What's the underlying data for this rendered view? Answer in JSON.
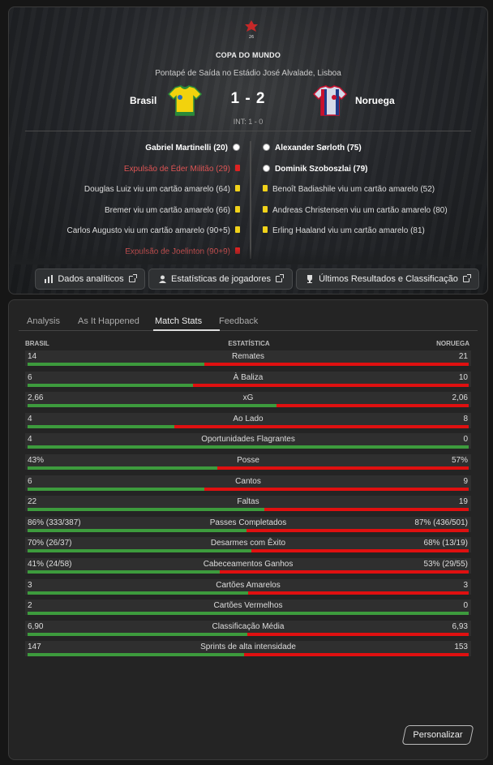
{
  "header": {
    "competition": "COPA DO MUNDO",
    "venue": "Pontapé de Saída no Estádio José Alvalade, Lisboa",
    "home_team": "Brasil",
    "away_team": "Noruega",
    "score": "1 - 2",
    "half_time": "INT: 1 - 0"
  },
  "events": {
    "home": [
      {
        "text": "Gabriel Martinelli (20)",
        "type": "goal"
      },
      {
        "text": "Expulsão de Éder Militão (29)",
        "type": "red"
      },
      {
        "text": "Douglas Luiz viu um cartão amarelo (64)",
        "type": "yellow"
      },
      {
        "text": "Bremer viu um cartão amarelo (66)",
        "type": "yellow"
      },
      {
        "text": "Carlos Augusto viu um cartão amarelo (90+5)",
        "type": "yellow"
      },
      {
        "text": "Expulsão de Joelinton (90+9)",
        "type": "red"
      }
    ],
    "away": [
      {
        "text": "Alexander Sørloth (75)",
        "type": "goal"
      },
      {
        "text": "Dominik Szoboszlai (79)",
        "type": "goal"
      },
      {
        "text": "Benoît Badiashile viu um cartão amarelo (52)",
        "type": "yellow"
      },
      {
        "text": "Andreas Christensen viu um cartão amarelo (80)",
        "type": "yellow"
      },
      {
        "text": "Erling Haaland viu um cartão amarelo (81)",
        "type": "yellow"
      }
    ]
  },
  "buttons": {
    "analytics": "Dados analíticos",
    "player_stats": "Estatísticas de jogadores",
    "results": "Últimos Resultados e Classificação"
  },
  "tabs": [
    "Analysis",
    "As It Happened",
    "Match Stats",
    "Feedback"
  ],
  "active_tab": "Match Stats",
  "stats_header": {
    "home": "BRASIL",
    "mid": "ESTATÍSTICA",
    "away": "NORUEGA"
  },
  "stats": [
    {
      "label": "Remates",
      "home": "14",
      "away": "21",
      "home_share": 0.4
    },
    {
      "label": "À Baliza",
      "home": "6",
      "away": "10",
      "home_share": 0.375
    },
    {
      "label": "xG",
      "home": "2,66",
      "away": "2,06",
      "home_share": 0.564
    },
    {
      "label": "Ao Lado",
      "home": "4",
      "away": "8",
      "home_share": 0.333
    },
    {
      "label": "Oportunidades Flagrantes",
      "home": "4",
      "away": "0",
      "home_share": 1.0
    },
    {
      "label": "Posse",
      "home": "43%",
      "away": "57%",
      "home_share": 0.43
    },
    {
      "label": "Cantos",
      "home": "6",
      "away": "9",
      "home_share": 0.4
    },
    {
      "label": "Faltas",
      "home": "22",
      "away": "19",
      "home_share": 0.537
    },
    {
      "label": "Passes Completados",
      "home": "86% (333/387)",
      "away": "87% (436/501)",
      "home_share": 0.497
    },
    {
      "label": "Desarmes com Êxito",
      "home": "70% (26/37)",
      "away": "68% (13/19)",
      "home_share": 0.507
    },
    {
      "label": "Cabeceamentos Ganhos",
      "home": "41% (24/58)",
      "away": "53% (29/55)",
      "home_share": 0.436
    },
    {
      "label": "Cartões Amarelos",
      "home": "3",
      "away": "3",
      "home_share": 0.5
    },
    {
      "label": "Cartões Vermelhos",
      "home": "2",
      "away": "0",
      "home_share": 1.0
    },
    {
      "label": "Classificação Média",
      "home": "6,90",
      "away": "6,93",
      "home_share": 0.499
    },
    {
      "label": "Sprints de alta intensidade",
      "home": "147",
      "away": "153",
      "home_share": 0.49
    }
  ],
  "customize_label": "Personalizar",
  "colors": {
    "home_bar": "#3d9b3d",
    "away_bar": "#e01010",
    "yellow_card": "#f1d21a",
    "red_card": "#d22222"
  }
}
